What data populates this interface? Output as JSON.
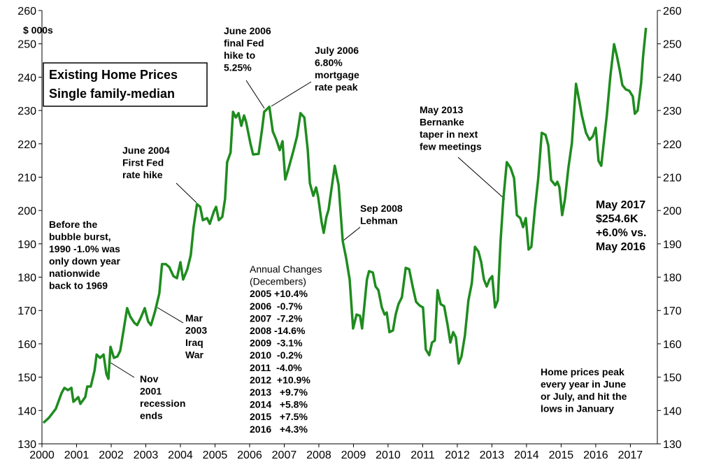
{
  "chart_data": {
    "type": "line",
    "title": [
      "Existing Home Prices",
      "Single family-median"
    ],
    "y_label": "$ 000s",
    "xlim": [
      2000,
      2017.78
    ],
    "xticks": [
      2000,
      2001,
      2002,
      2003,
      2004,
      2005,
      2006,
      2007,
      2008,
      2009,
      2010,
      2011,
      2012,
      2013,
      2014,
      2015,
      2016,
      2017
    ],
    "ylim": [
      130,
      260
    ],
    "yticks": [
      130,
      140,
      150,
      160,
      170,
      180,
      190,
      200,
      210,
      220,
      230,
      240,
      250,
      260
    ],
    "y2lim": [
      130,
      260
    ],
    "y2ticks": [
      130,
      140,
      150,
      160,
      170,
      180,
      190,
      200,
      210,
      220,
      230,
      240,
      250,
      260
    ],
    "grid": false,
    "series": [
      {
        "name": "Existing Home Prices",
        "color": "#1e8c1e",
        "x": [
          2000.04,
          2000.2,
          2000.4,
          2000.57,
          2000.65,
          2000.75,
          2000.85,
          2000.91,
          2001.05,
          2001.11,
          2001.25,
          2001.31,
          2001.41,
          2001.52,
          2001.58,
          2001.68,
          2001.78,
          2001.86,
          2001.92,
          2001.98,
          2002.08,
          2002.18,
          2002.26,
          2002.34,
          2002.46,
          2002.55,
          2002.67,
          2002.75,
          2002.85,
          2002.97,
          2003.07,
          2003.15,
          2003.27,
          2003.39,
          2003.47,
          2003.58,
          2003.68,
          2003.8,
          2003.9,
          2004.0,
          2004.08,
          2004.2,
          2004.3,
          2004.38,
          2004.48,
          2004.57,
          2004.65,
          2004.77,
          2004.85,
          2004.97,
          2005.03,
          2005.11,
          2005.21,
          2005.29,
          2005.35,
          2005.45,
          2005.52,
          2005.6,
          2005.68,
          2005.76,
          2005.84,
          2005.9,
          2006.02,
          2006.1,
          2006.26,
          2006.36,
          2006.42,
          2006.57,
          2006.67,
          2006.77,
          2006.87,
          2006.95,
          2007.03,
          2007.13,
          2007.27,
          2007.37,
          2007.47,
          2007.58,
          2007.68,
          2007.74,
          2007.84,
          2007.92,
          2007.98,
          2008.08,
          2008.14,
          2008.22,
          2008.28,
          2008.38,
          2008.46,
          2008.57,
          2008.69,
          2008.79,
          2008.89,
          2008.99,
          2009.09,
          2009.19,
          2009.25,
          2009.39,
          2009.45,
          2009.56,
          2009.64,
          2009.72,
          2009.82,
          2009.9,
          2009.96,
          2010.04,
          2010.14,
          2010.22,
          2010.3,
          2010.4,
          2010.51,
          2010.61,
          2010.71,
          2010.81,
          2010.91,
          2011.01,
          2011.09,
          2011.19,
          2011.27,
          2011.35,
          2011.43,
          2011.52,
          2011.62,
          2011.72,
          2011.8,
          2011.88,
          2011.96,
          2012.04,
          2012.12,
          2012.22,
          2012.32,
          2012.42,
          2012.51,
          2012.61,
          2012.69,
          2012.77,
          2012.85,
          2012.93,
          2013.01,
          2013.09,
          2013.17,
          2013.25,
          2013.33,
          2013.43,
          2013.54,
          2013.64,
          2013.72,
          2013.82,
          2013.9,
          2013.98,
          2014.06,
          2014.14,
          2014.24,
          2014.34,
          2014.44,
          2014.55,
          2014.63,
          2014.71,
          2014.83,
          2014.89,
          2014.95,
          2015.03,
          2015.11,
          2015.21,
          2015.31,
          2015.43,
          2015.52,
          2015.6,
          2015.72,
          2015.82,
          2015.92,
          2016.0,
          2016.08,
          2016.16,
          2016.24,
          2016.32,
          2016.42,
          2016.53,
          2016.61,
          2016.69,
          2016.77,
          2016.87,
          2016.97,
          2017.07,
          2017.13,
          2017.21,
          2017.31,
          2017.37,
          2017.45
        ],
        "values": [
          136.3,
          137.8,
          140.5,
          145.3,
          146.8,
          146.1,
          146.8,
          142.6,
          144.0,
          142.0,
          144.0,
          147.2,
          147.2,
          152.0,
          156.8,
          155.8,
          156.8,
          151.0,
          149.5,
          159.1,
          155.8,
          156.2,
          157.9,
          162.9,
          170.7,
          168.2,
          166.3,
          165.6,
          167.7,
          170.7,
          166.7,
          165.6,
          169.8,
          175.1,
          183.9,
          183.9,
          183.0,
          180.3,
          179.7,
          184.5,
          179.3,
          182.4,
          186.6,
          195.0,
          201.9,
          201.1,
          197.1,
          197.7,
          196.0,
          199.8,
          201.1,
          197.1,
          198.1,
          203.4,
          214.5,
          217.4,
          229.6,
          227.9,
          229.2,
          225.4,
          228.5,
          226.5,
          220.2,
          216.8,
          217.0,
          224.4,
          229.6,
          231.1,
          223.7,
          221.2,
          218.1,
          220.8,
          209.3,
          212.8,
          218.1,
          222.3,
          229.2,
          227.9,
          218.1,
          208.2,
          204.4,
          206.9,
          204.0,
          196.5,
          193.3,
          198.1,
          200.2,
          207.6,
          213.4,
          207.6,
          190.8,
          185.6,
          179.3,
          164.6,
          168.8,
          168.4,
          164.6,
          179.3,
          181.8,
          181.4,
          177.2,
          176.1,
          170.9,
          168.8,
          169.4,
          163.5,
          164.0,
          168.8,
          171.9,
          174.0,
          182.8,
          182.4,
          177.2,
          172.6,
          171.5,
          170.9,
          158.3,
          156.6,
          160.4,
          161.0,
          176.1,
          171.9,
          171.3,
          165.6,
          160.4,
          163.5,
          161.9,
          154.1,
          156.2,
          162.5,
          173.0,
          178.2,
          189.1,
          187.7,
          184.5,
          179.3,
          177.2,
          179.3,
          180.3,
          170.9,
          173.0,
          190.8,
          203.4,
          214.5,
          212.8,
          209.7,
          198.6,
          197.7,
          195.0,
          197.7,
          188.3,
          189.1,
          200.2,
          209.7,
          223.3,
          222.7,
          219.5,
          209.1,
          207.6,
          208.6,
          207.0,
          198.6,
          203.4,
          212.8,
          220.2,
          238.0,
          233.2,
          228.5,
          223.3,
          221.2,
          222.3,
          224.8,
          214.9,
          213.4,
          221.2,
          228.5,
          240.1,
          249.9,
          246.4,
          242.2,
          237.6,
          236.3,
          235.9,
          234.2,
          229.0,
          230.0,
          238.0,
          246.4,
          254.8
        ]
      }
    ],
    "annotations": [
      [
        "June 2006",
        "final Fed",
        "hike to",
        "5.25%"
      ],
      [
        "July 2006",
        "6.80%",
        "mortgage",
        "rate peak"
      ],
      [
        "June 2004",
        "First Fed",
        "rate hike"
      ],
      [
        "Before the",
        "bubble burst,",
        "1990 -1.0% was",
        "only down year",
        "nationwide",
        "back to 1969"
      ],
      [
        "Sep 2008",
        "Lehman"
      ],
      [
        "Annual Changes",
        "(Decembers)",
        "2005 +10.4%",
        "2006  -0.7%",
        "2007  -7.2%",
        "2008 -14.6%",
        "2009  -3.1%",
        "2010  -0.2%",
        "2011  -4.0%",
        "2012  +10.9%",
        "2013   +9.7%",
        "2014   +5.8%",
        "2015   +7.5%",
        "2016   +4.3%"
      ],
      [
        "Mar",
        "2003",
        "Iraq",
        "War"
      ],
      [
        "Nov",
        "2001",
        "recession",
        "ends"
      ],
      [
        "May 2013",
        "Bernanke",
        "taper in next",
        "few meetings"
      ],
      [
        "May 2017",
        "$254.6K",
        "+6.0% vs.",
        "May 2016"
      ],
      [
        "Home prices peak",
        "every year in June",
        "or July, and hit the",
        "lows in January"
      ]
    ]
  }
}
